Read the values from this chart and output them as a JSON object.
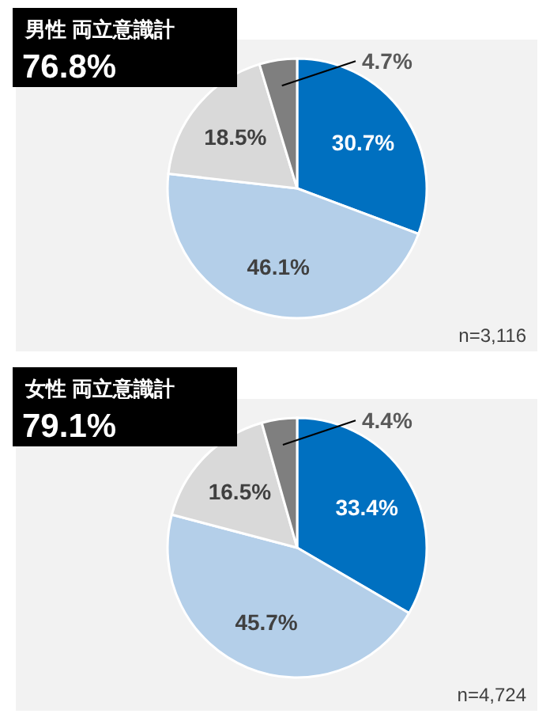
{
  "chart_data": [
    {
      "type": "pie",
      "title": "男性 両立意識計",
      "subtitle": "76.8%",
      "categories": [
        null,
        null,
        null,
        null
      ],
      "values": [
        30.7,
        46.1,
        18.5,
        4.7
      ],
      "value_labels": [
        "30.7%",
        "46.1%",
        "18.5%",
        "4.7%"
      ],
      "colors": [
        "#0070c0",
        "#b4cfe9",
        "#d9d9d9",
        "#7f7f7f"
      ],
      "annotations": [
        "n=3,116"
      ]
    },
    {
      "type": "pie",
      "title": "女性 両立意識計",
      "subtitle": "79.1%",
      "categories": [
        null,
        null,
        null,
        null
      ],
      "values": [
        33.4,
        45.7,
        16.5,
        4.4
      ],
      "value_labels": [
        "33.4%",
        "45.7%",
        "16.5%",
        "4.4%"
      ],
      "colors": [
        "#0070c0",
        "#b4cfe9",
        "#d9d9d9",
        "#7f7f7f"
      ],
      "annotations": [
        "n=4,724"
      ]
    }
  ]
}
